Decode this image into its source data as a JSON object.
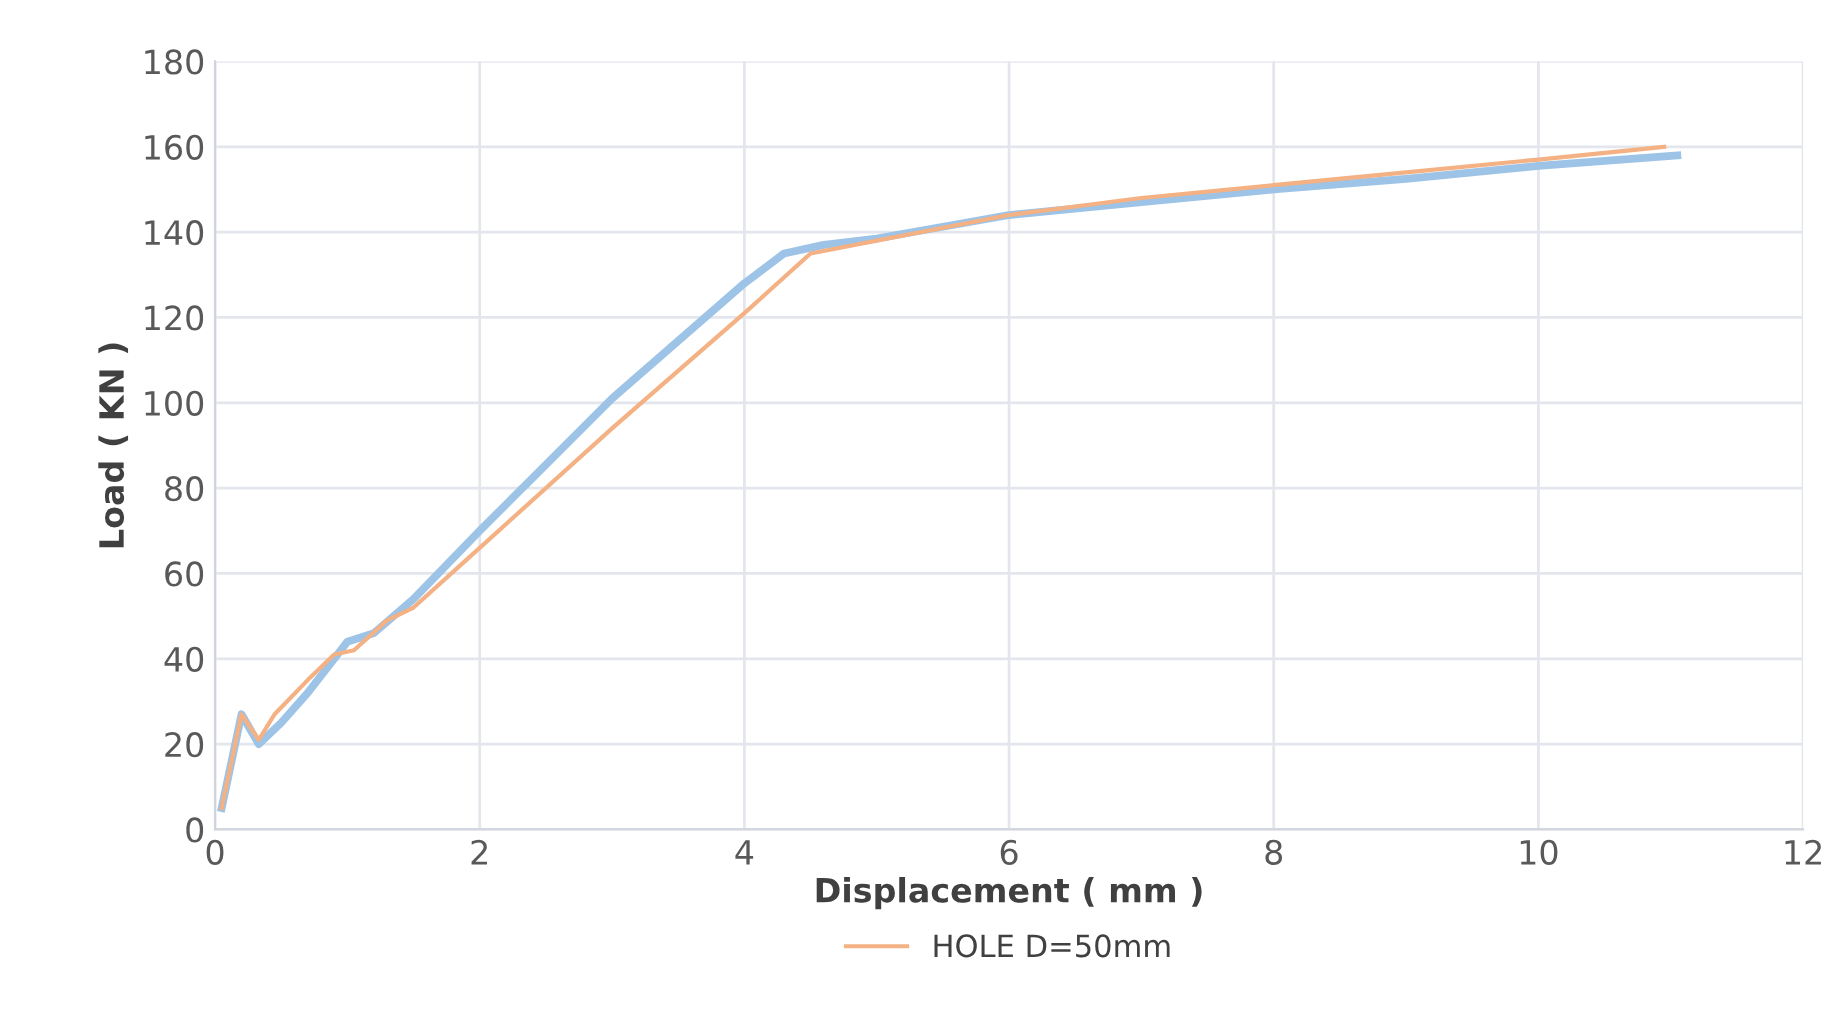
{
  "chart_data": {
    "type": "line",
    "xlabel": "Displacement ( mm )",
    "ylabel": "Load ( KN )",
    "xlim": [
      0,
      12
    ],
    "xticks": [
      0,
      2,
      4,
      6,
      8,
      10,
      12
    ],
    "ylim": [
      0,
      180
    ],
    "yticks": [
      0,
      20,
      40,
      60,
      80,
      100,
      120,
      140,
      160,
      180
    ],
    "grid": true,
    "legend": "bottom",
    "series": [
      {
        "color": "#9dc3e6",
        "x": [
          0.05,
          0.2,
          0.33,
          0.5,
          0.7,
          0.9,
          1.0,
          1.2,
          1.5,
          2,
          3,
          4,
          4.3,
          4.6,
          5,
          6,
          7,
          8,
          9,
          10,
          11.05
        ],
        "values": [
          5,
          27,
          20,
          25,
          32,
          40,
          44,
          46,
          54,
          70,
          101,
          128,
          135,
          137,
          138.5,
          144,
          147,
          150,
          152.5,
          155.5,
          158
        ]
      },
      {
        "name": "HOLE D=50mm",
        "color": "#f4b183",
        "x": [
          0.05,
          0.2,
          0.33,
          0.45,
          0.7,
          0.9,
          1.05,
          1.3,
          1.5,
          2,
          3,
          4,
          4.5,
          5,
          6,
          7,
          8,
          9,
          10,
          10.95
        ],
        "values": [
          5,
          27,
          21,
          27,
          35,
          41,
          42,
          49,
          52,
          66,
          94,
          121,
          135,
          138,
          144,
          148,
          151,
          154,
          157,
          160
        ]
      }
    ]
  }
}
